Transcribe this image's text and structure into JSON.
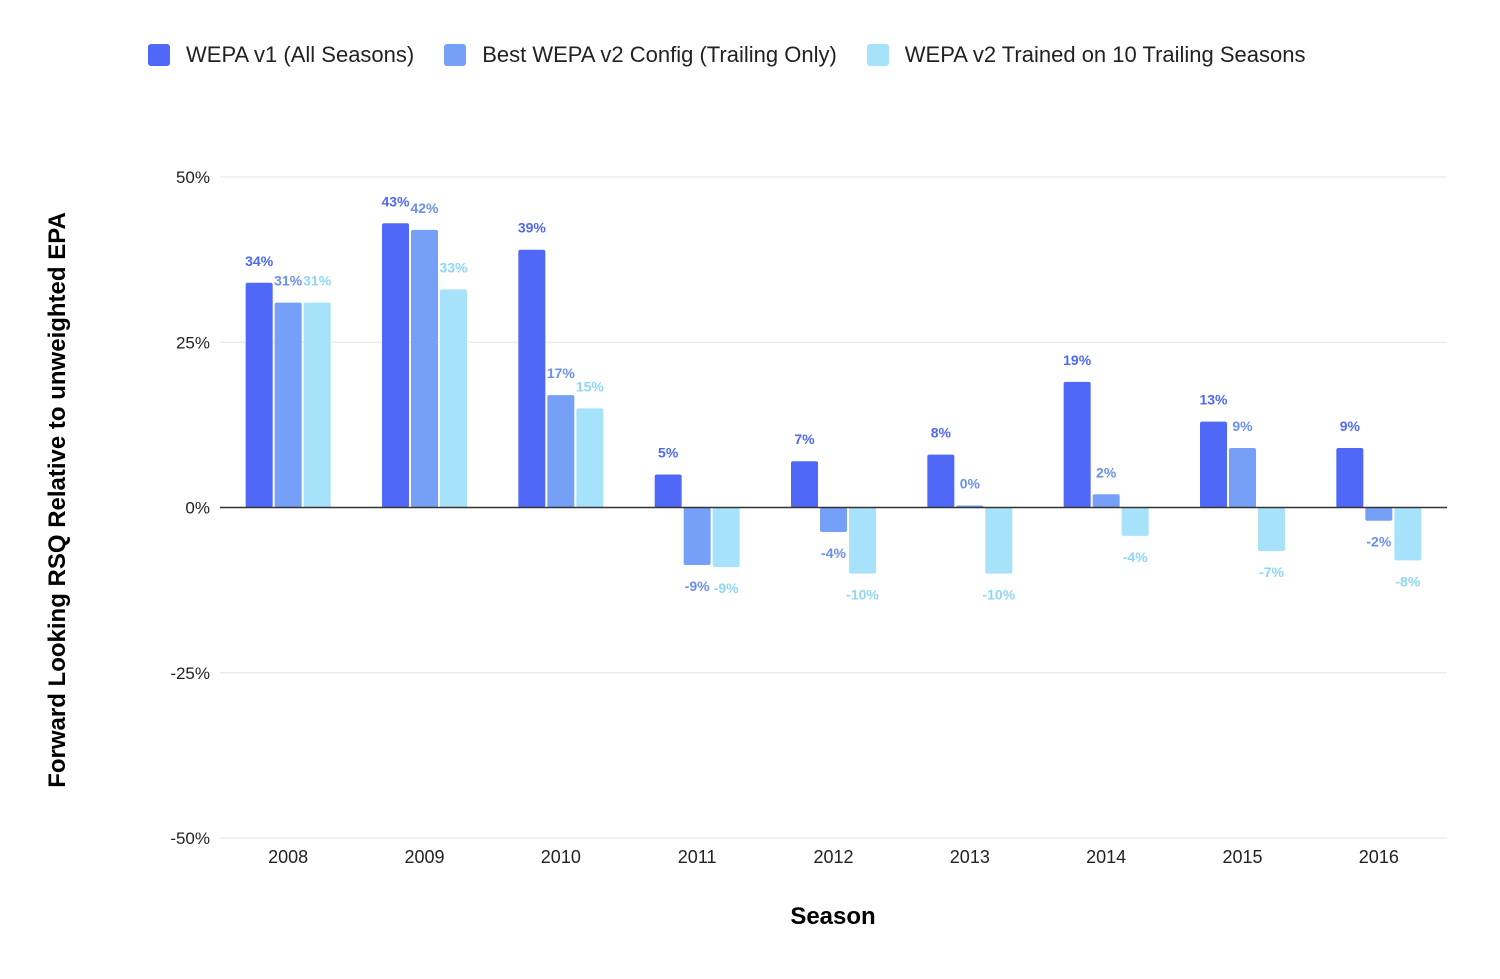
{
  "chart_data": {
    "type": "bar",
    "title": "",
    "xlabel": "Season",
    "ylabel": "Forward Looking RSQ Relative to unweighted EPA",
    "ylim": [
      -0.5,
      0.5
    ],
    "yticks": [
      0.5,
      0.25,
      0,
      -0.25,
      -0.5
    ],
    "ytick_labels": [
      "50%",
      "25%",
      "0%",
      "-25%",
      "-50%"
    ],
    "categories": [
      "2008",
      "2009",
      "2010",
      "2011",
      "2012",
      "2013",
      "2014",
      "2015",
      "2016"
    ],
    "legend_position": "top",
    "grid": true,
    "series": [
      {
        "name": "WEPA v1 (All Seasons)",
        "color": "#4f68f8",
        "label_color": "#4f68f8",
        "values": [
          0.34,
          0.43,
          0.39,
          0.05,
          0.07,
          0.08,
          0.19,
          0.13,
          0.09
        ],
        "labels": [
          "34%",
          "43%",
          "39%",
          "5%",
          "7%",
          "8%",
          "19%",
          "13%",
          "9%"
        ]
      },
      {
        "name": "Best WEPA v2 Config (Trailing Only)",
        "color": "#76a0f8",
        "label_color": "#6a90ee",
        "values": [
          0.31,
          0.42,
          0.17,
          -0.087,
          -0.037,
          0.003,
          0.02,
          0.09,
          -0.02
        ],
        "labels": [
          "31%",
          "42%",
          "17%",
          "-9%",
          "-4%",
          "0%",
          "2%",
          "9%",
          "-2%"
        ]
      },
      {
        "name": "WEPA v2 Trained on 10 Trailing Seasons",
        "color": "#a6e2fa",
        "label_color": "#8fd6f6",
        "values": [
          0.31,
          0.33,
          0.15,
          -0.09,
          -0.1,
          -0.1,
          -0.043,
          -0.066,
          -0.08
        ],
        "labels": [
          "31%",
          "33%",
          "15%",
          "-9%",
          "-10%",
          "-10%",
          "-4%",
          "-7%",
          "-8%"
        ]
      }
    ]
  }
}
